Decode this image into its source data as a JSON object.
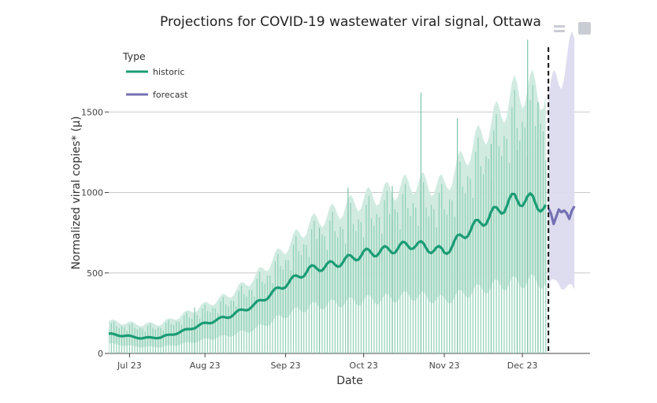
{
  "chart_data": {
    "type": "line",
    "title": "Projections for COVID-19 wastewater viral signal, Ottawa",
    "xlabel": "Date",
    "ylabel": "Normalized viral copies* (μ)",
    "x_range": [
      "2023-06-25",
      "2023-12-27"
    ],
    "ylim": [
      0,
      2000
    ],
    "y_ticks": [
      0,
      500,
      1000,
      1500
    ],
    "y_tick_labels": [
      "0",
      "500",
      "1000",
      "1500"
    ],
    "x_ticks": [
      "2023-07-03",
      "2023-08-01",
      "2023-09-01",
      "2023-10-01",
      "2023-11-01",
      "2023-12-01"
    ],
    "x_tick_labels": [
      "Jul 23",
      "Aug 23",
      "Sep 23",
      "Oct 23",
      "Nov 23",
      "Dec 23"
    ],
    "grid": true,
    "legend": {
      "title": "Type",
      "placement": "top-left",
      "entries": [
        {
          "name": "historic",
          "color": "#1a9c74"
        },
        {
          "name": "forecast",
          "color": "#7570b3"
        }
      ]
    },
    "forecast_start": "2023-12-11",
    "series": [
      {
        "name": "historic",
        "color": "#1a9c74",
        "band_color": "#cfeadf",
        "points": [
          {
            "x": "2023-06-25",
            "y": 120,
            "lo": 60,
            "hi": 200
          },
          {
            "x": "2023-07-01",
            "y": 110,
            "lo": 50,
            "hi": 190
          },
          {
            "x": "2023-07-08",
            "y": 95,
            "lo": 40,
            "hi": 180
          },
          {
            "x": "2023-07-15",
            "y": 100,
            "lo": 40,
            "hi": 185
          },
          {
            "x": "2023-07-22",
            "y": 130,
            "lo": 55,
            "hi": 230
          },
          {
            "x": "2023-08-01",
            "y": 185,
            "lo": 85,
            "hi": 300
          },
          {
            "x": "2023-08-10",
            "y": 230,
            "lo": 110,
            "hi": 360
          },
          {
            "x": "2023-08-20",
            "y": 300,
            "lo": 150,
            "hi": 470
          },
          {
            "x": "2023-09-01",
            "y": 430,
            "lo": 240,
            "hi": 660
          },
          {
            "x": "2023-09-10",
            "y": 520,
            "lo": 290,
            "hi": 800
          },
          {
            "x": "2023-09-20",
            "y": 555,
            "lo": 310,
            "hi": 880
          },
          {
            "x": "2023-10-01",
            "y": 620,
            "lo": 330,
            "hi": 960
          },
          {
            "x": "2023-10-10",
            "y": 640,
            "lo": 340,
            "hi": 1000
          },
          {
            "x": "2023-10-20",
            "y": 680,
            "lo": 360,
            "hi": 1060
          },
          {
            "x": "2023-11-01",
            "y": 630,
            "lo": 330,
            "hi": 1040
          },
          {
            "x": "2023-11-10",
            "y": 760,
            "lo": 380,
            "hi": 1250
          },
          {
            "x": "2023-11-20",
            "y": 870,
            "lo": 420,
            "hi": 1450
          },
          {
            "x": "2023-11-28",
            "y": 960,
            "lo": 440,
            "hi": 1620
          },
          {
            "x": "2023-12-05",
            "y": 950,
            "lo": 450,
            "hi": 1650
          },
          {
            "x": "2023-12-10",
            "y": 900,
            "lo": 440,
            "hi": 1600
          }
        ]
      },
      {
        "name": "forecast",
        "color": "#7570b3",
        "band_color": "#dcdbef",
        "points": [
          {
            "x": "2023-12-11",
            "y": 880,
            "lo": 430,
            "hi": 1580
          },
          {
            "x": "2023-12-13",
            "y": 780,
            "lo": 420,
            "hi": 1650
          },
          {
            "x": "2023-12-15",
            "y": 930,
            "lo": 450,
            "hi": 1720
          },
          {
            "x": "2023-12-17",
            "y": 900,
            "lo": 430,
            "hi": 1800
          },
          {
            "x": "2023-12-19",
            "y": 800,
            "lo": 400,
            "hi": 1850
          },
          {
            "x": "2023-12-21",
            "y": 920,
            "lo": 380,
            "hi": 1900
          }
        ]
      },
      {
        "name": "observations",
        "color": "#7dc4a8",
        "points": [
          {
            "x": "2023-07-28",
            "y": 285
          },
          {
            "x": "2023-09-14",
            "y": 780
          },
          {
            "x": "2023-09-25",
            "y": 1030
          },
          {
            "x": "2023-10-12",
            "y": 1040
          },
          {
            "x": "2023-10-23",
            "y": 1620
          },
          {
            "x": "2023-11-06",
            "y": 1460
          },
          {
            "x": "2023-11-19",
            "y": 1300
          },
          {
            "x": "2023-11-29",
            "y": 1260
          },
          {
            "x": "2023-12-03",
            "y": 1950
          },
          {
            "x": "2023-12-07",
            "y": 1560
          }
        ]
      }
    ]
  }
}
